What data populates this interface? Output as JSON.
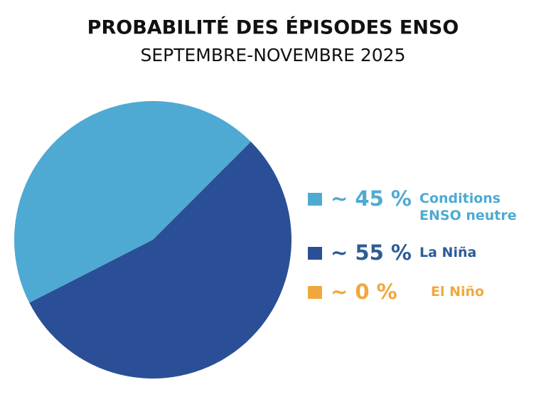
{
  "chart_data": {
    "type": "pie",
    "title": "PROBABILITÉ DES ÉPISODES ENSO",
    "subtitle": "SEPTEMBRE-NOVEMBRE 2025",
    "categories": [
      "Conditions ENSO neutre",
      "La Niña",
      "El Niño"
    ],
    "values": [
      45,
      55,
      0
    ],
    "value_labels": [
      "~ 45 %",
      "~ 55 %",
      "~ 0 %"
    ],
    "colors": [
      "#4eaad2",
      "#2a4f96",
      "#f0a83c"
    ]
  }
}
